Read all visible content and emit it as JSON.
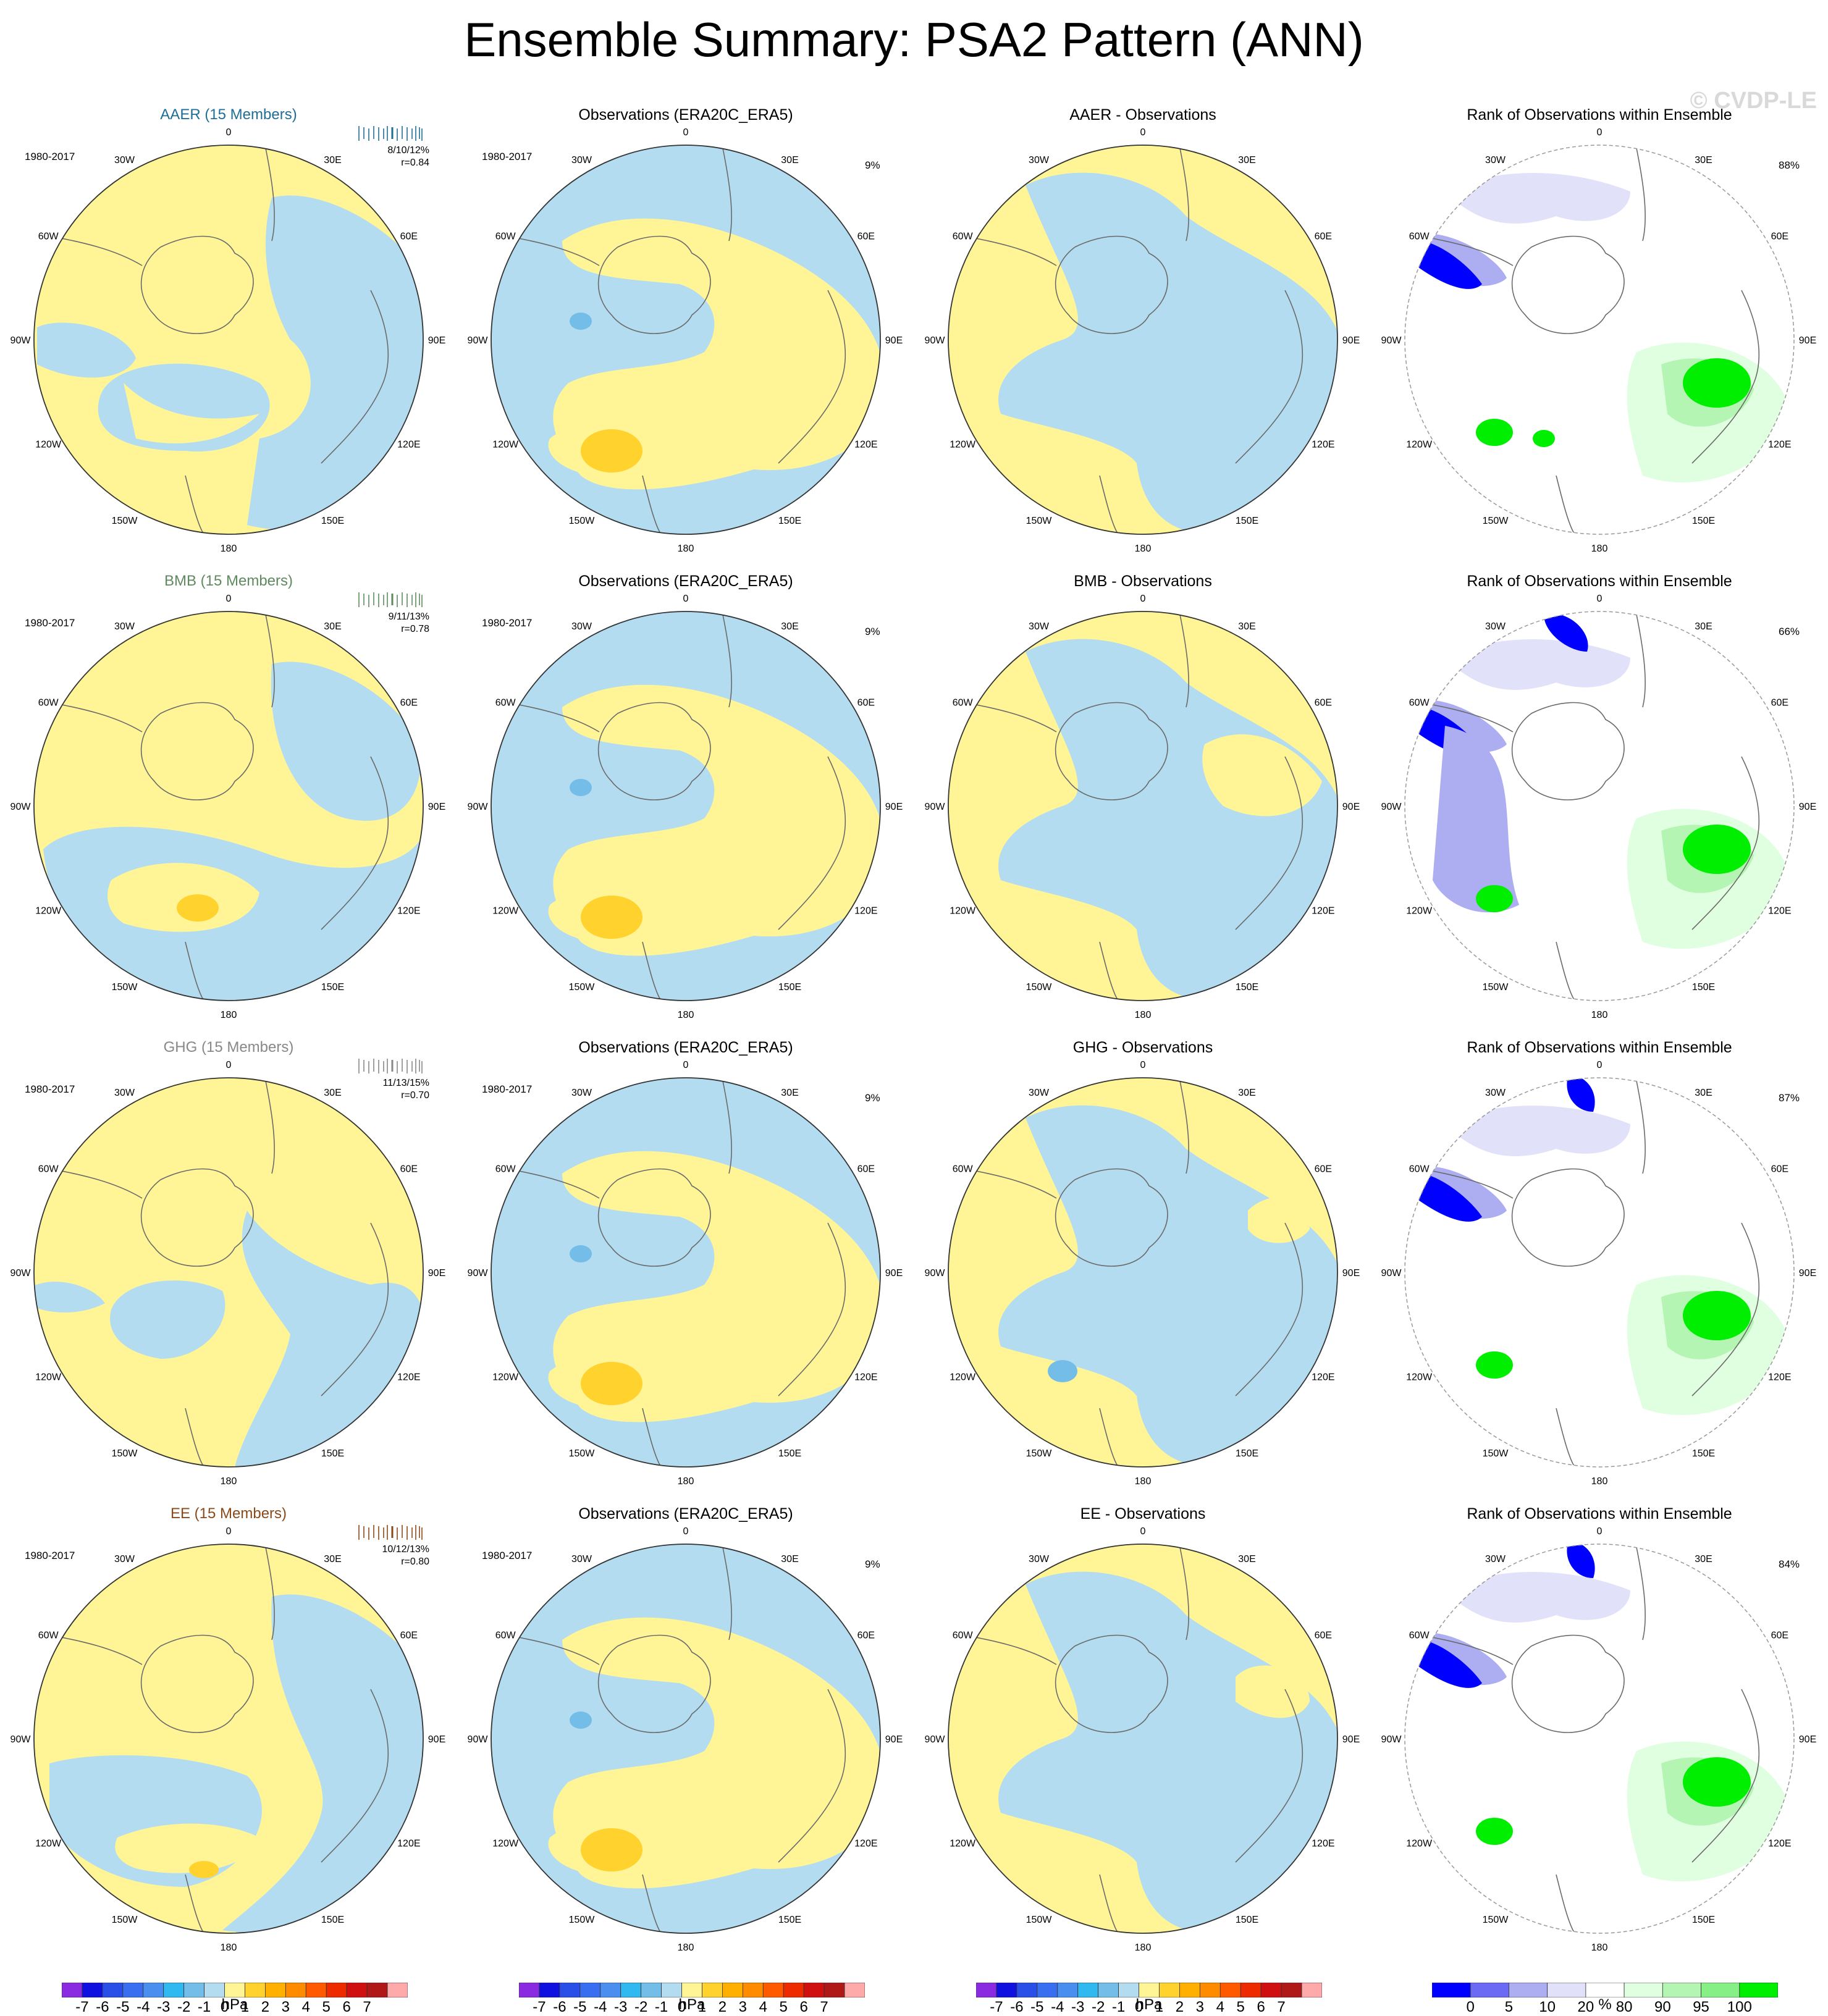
{
  "title": "Ensemble Summary: PSA2 Pattern (ANN)",
  "watermark": "© CVDP-LE",
  "colors": {
    "blue": "#b3dcf0",
    "yellow": "#fff597",
    "orange": "#ffd22e",
    "midblue": "#74bde8",
    "rank_dblue": "#0000ff",
    "rank_mblue": "#adadf2",
    "rank_lblue": "#e1e1fa",
    "rank_lgreen": "#e0ffe0",
    "rank_mgreen": "#b4f5b4",
    "rank_green": "#00ee00"
  },
  "lon_labels": [
    "0",
    "30E",
    "60E",
    "90E",
    "120E",
    "150E",
    "180",
    "150W",
    "120W",
    "90W",
    "60W",
    "30W"
  ],
  "rows": [
    {
      "ensemble": {
        "title": "AAER (15 Members)",
        "title_color": "#1f6e96",
        "period": "1980-2017",
        "stats1": "8/10/12%",
        "stats2": "r=0.84"
      },
      "obs": {
        "title": "Observations (ERA20C_ERA5)",
        "period": "1980-2017",
        "pct": "9%"
      },
      "diff": {
        "title": "AAER - Observations"
      },
      "rank": {
        "title": "Rank of Observations within Ensemble",
        "pct": "88%"
      }
    },
    {
      "ensemble": {
        "title": "BMB (15 Members)",
        "title_color": "#5f8a5f",
        "period": "1980-2017",
        "stats1": "9/11/13%",
        "stats2": "r=0.78"
      },
      "obs": {
        "title": "Observations (ERA20C_ERA5)",
        "period": "1980-2017",
        "pct": "9%"
      },
      "diff": {
        "title": "BMB - Observations"
      },
      "rank": {
        "title": "Rank of Observations within Ensemble",
        "pct": "66%"
      }
    },
    {
      "ensemble": {
        "title": "GHG (15 Members)",
        "title_color": "#888888",
        "period": "1980-2017",
        "stats1": "11/13/15%",
        "stats2": "r=0.70"
      },
      "obs": {
        "title": "Observations (ERA20C_ERA5)",
        "period": "1980-2017",
        "pct": "9%"
      },
      "diff": {
        "title": "GHG - Observations"
      },
      "rank": {
        "title": "Rank of Observations within Ensemble",
        "pct": "87%"
      }
    },
    {
      "ensemble": {
        "title": "EE (15 Members)",
        "title_color": "#8a4a1a",
        "period": "1980-2017",
        "stats1": "10/12/13%",
        "stats2": "r=0.80"
      },
      "obs": {
        "title": "Observations (ERA20C_ERA5)",
        "period": "1980-2017",
        "pct": "9%"
      },
      "diff": {
        "title": "EE - Observations"
      },
      "rank": {
        "title": "Rank of Observations within Ensemble",
        "pct": "84%"
      }
    }
  ],
  "colorbar_hpa": {
    "colors": [
      "#8a2be2",
      "#1010e0",
      "#2a4ee8",
      "#3a6ef0",
      "#4a8ef0",
      "#30b8f0",
      "#74bde8",
      "#b3dcf0",
      "#fff597",
      "#ffd22e",
      "#ffb000",
      "#ff8c00",
      "#ff5a00",
      "#ee2a00",
      "#d01010",
      "#b01818",
      "#ffaaaa"
    ],
    "ticks": [
      "-7",
      "-6",
      "-5",
      "-4",
      "-3",
      "-2",
      "-1",
      "0",
      "1",
      "2",
      "3",
      "4",
      "5",
      "6",
      "7"
    ],
    "units": "hPa"
  },
  "colorbar_rank": {
    "colors": [
      "#0000ff",
      "#6a6af5",
      "#adadf2",
      "#e1e1fa",
      "#ffffff",
      "#e0ffe0",
      "#b4f5b4",
      "#86f086",
      "#00ee00"
    ],
    "ticks": [
      "0",
      "5",
      "10",
      "20",
      "80",
      "90",
      "95",
      "100"
    ],
    "units": "%"
  }
}
